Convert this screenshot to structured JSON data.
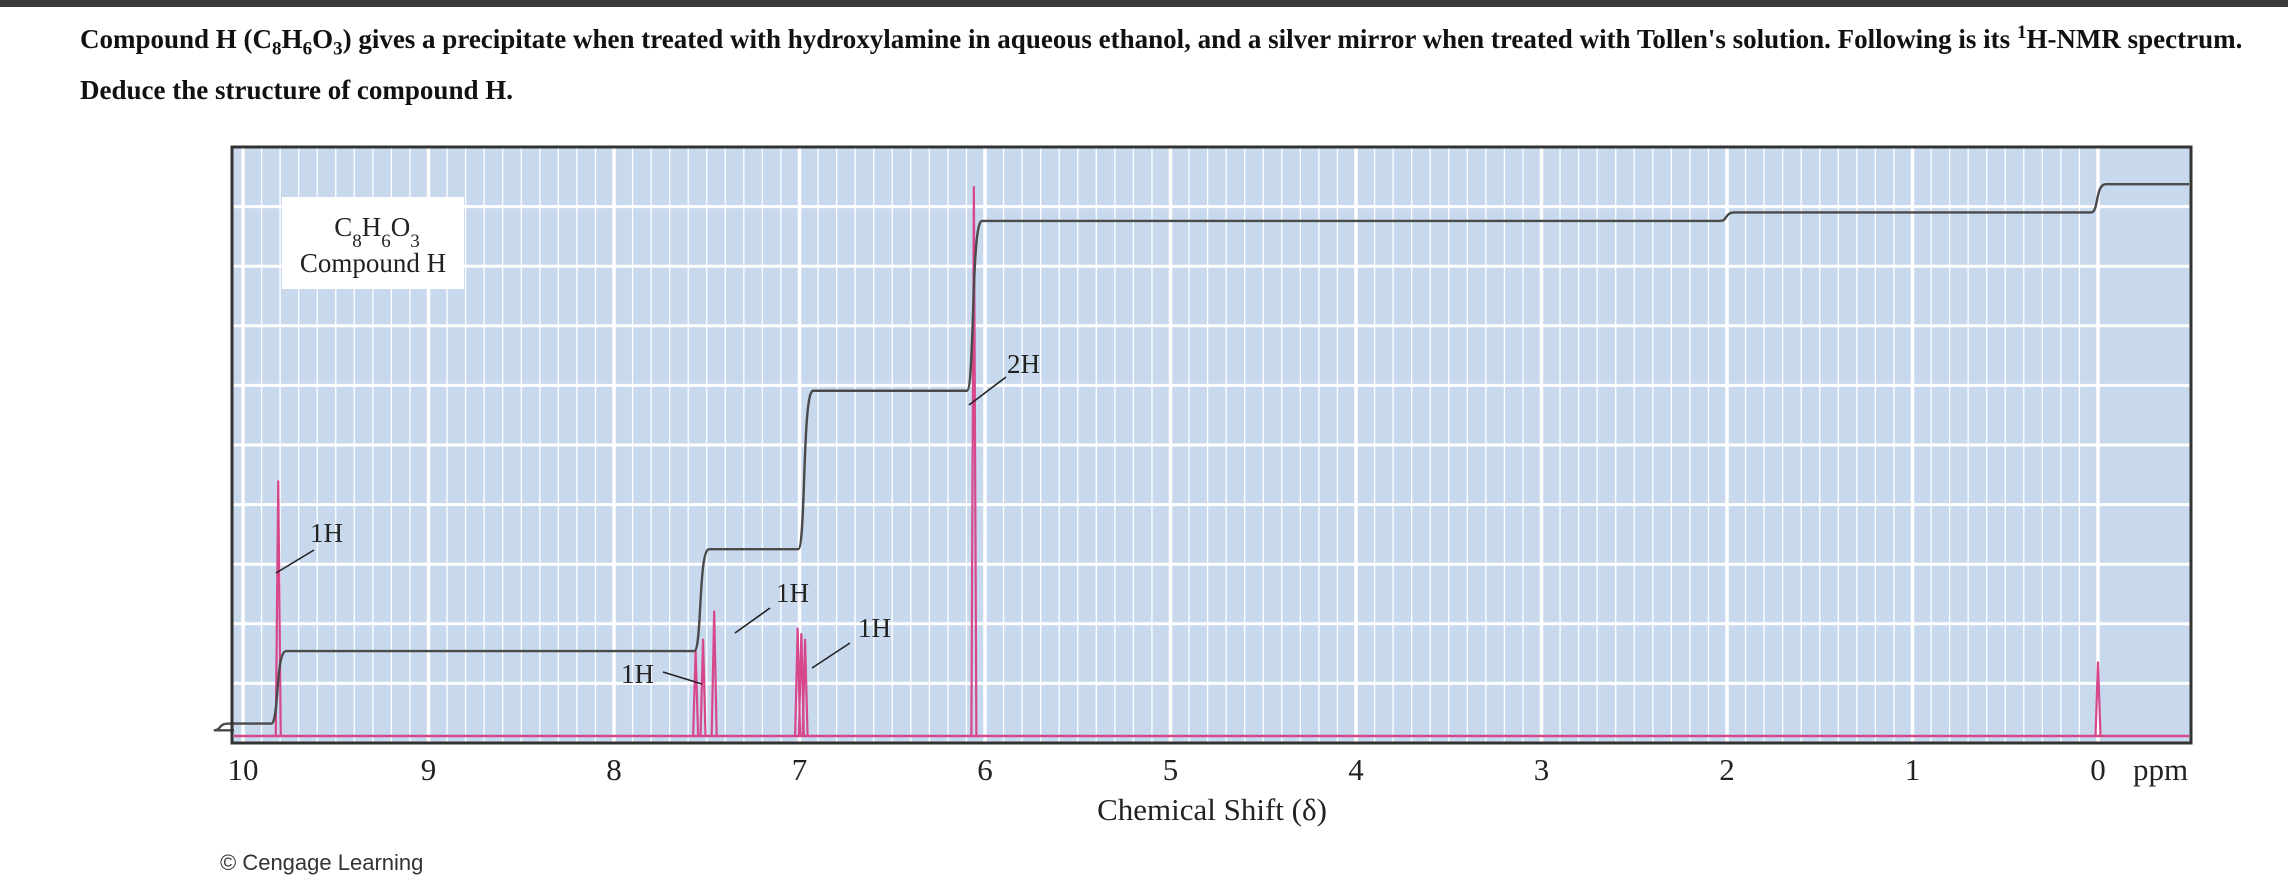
{
  "question": {
    "text_a": "Compound H (C",
    "sub1": "8",
    "text_b": "H",
    "sub2": "6",
    "text_c": "O",
    "sub3": "3",
    "text_d": ") gives a precipitate when treated with hydroxylamine in aqueous ethanol, and a silver mirror when treated with Tollen's solution. Following is its ",
    "sup": "1",
    "text_e": "H-NMR spectrum. Deduce the structure of compound H."
  },
  "chart_data": {
    "type": "line",
    "title": "",
    "compound_formula": {
      "C": "C",
      "c_n": "8",
      "H": "H",
      "h_n": "6",
      "O": "O",
      "o_n": "3"
    },
    "compound_label": "Compound H",
    "xlabel": "Chemical Shift (δ)",
    "x_unit": "ppm",
    "xlim": [
      10,
      0
    ],
    "x_reversed": true,
    "x_ticks": [
      "10",
      "9",
      "8",
      "7",
      "6",
      "5",
      "4",
      "3",
      "2",
      "1",
      "0"
    ],
    "grid": true,
    "colors": {
      "background": "#c8d9ee",
      "grid": "#ffffff",
      "spectrum": "#d6478b",
      "integral": "#4a4a4a"
    },
    "series": [
      {
        "peaks": [
          {
            "ppm": 9.81,
            "height": 0.45,
            "integration": "1H"
          },
          {
            "ppm": 7.56,
            "height": 0.15,
            "integration": "1H"
          },
          {
            "ppm": 7.52,
            "height": 0.17,
            "integration": "1H"
          },
          {
            "ppm": 7.46,
            "height": 0.22,
            "integration": "1H"
          },
          {
            "ppm": 7.01,
            "height": 0.19,
            "integration": "1H"
          },
          {
            "ppm": 6.99,
            "height": 0.18,
            "integration": "1H"
          },
          {
            "ppm": 6.97,
            "height": 0.17,
            "integration": "1H"
          },
          {
            "ppm": 6.06,
            "height": 0.97,
            "integration": "2H"
          },
          {
            "ppm": 0.0,
            "height": 0.13,
            "integration": ""
          }
        ]
      },
      {
        "integral_steps": [
          {
            "ppm": 10.12,
            "level": 0.022
          },
          {
            "ppm": 9.81,
            "level": 0.15
          },
          {
            "ppm": 7.53,
            "level": 0.33
          },
          {
            "ppm": 6.97,
            "level": 0.61
          },
          {
            "ppm": 6.06,
            "level": 0.91
          },
          {
            "ppm": 2.0,
            "level": 0.925
          },
          {
            "ppm": 0.0,
            "level": 0.975
          }
        ]
      }
    ],
    "annotations": [
      {
        "text": "1H",
        "peak_ppm": 9.81
      },
      {
        "text": "1H",
        "peak_ppm": 7.54
      },
      {
        "text": "1H",
        "peak_ppm": 7.46
      },
      {
        "text": "1H",
        "peak_ppm": 6.99
      },
      {
        "text": "2H",
        "peak_ppm": 6.06
      }
    ]
  },
  "credit": "© Cengage Learning"
}
